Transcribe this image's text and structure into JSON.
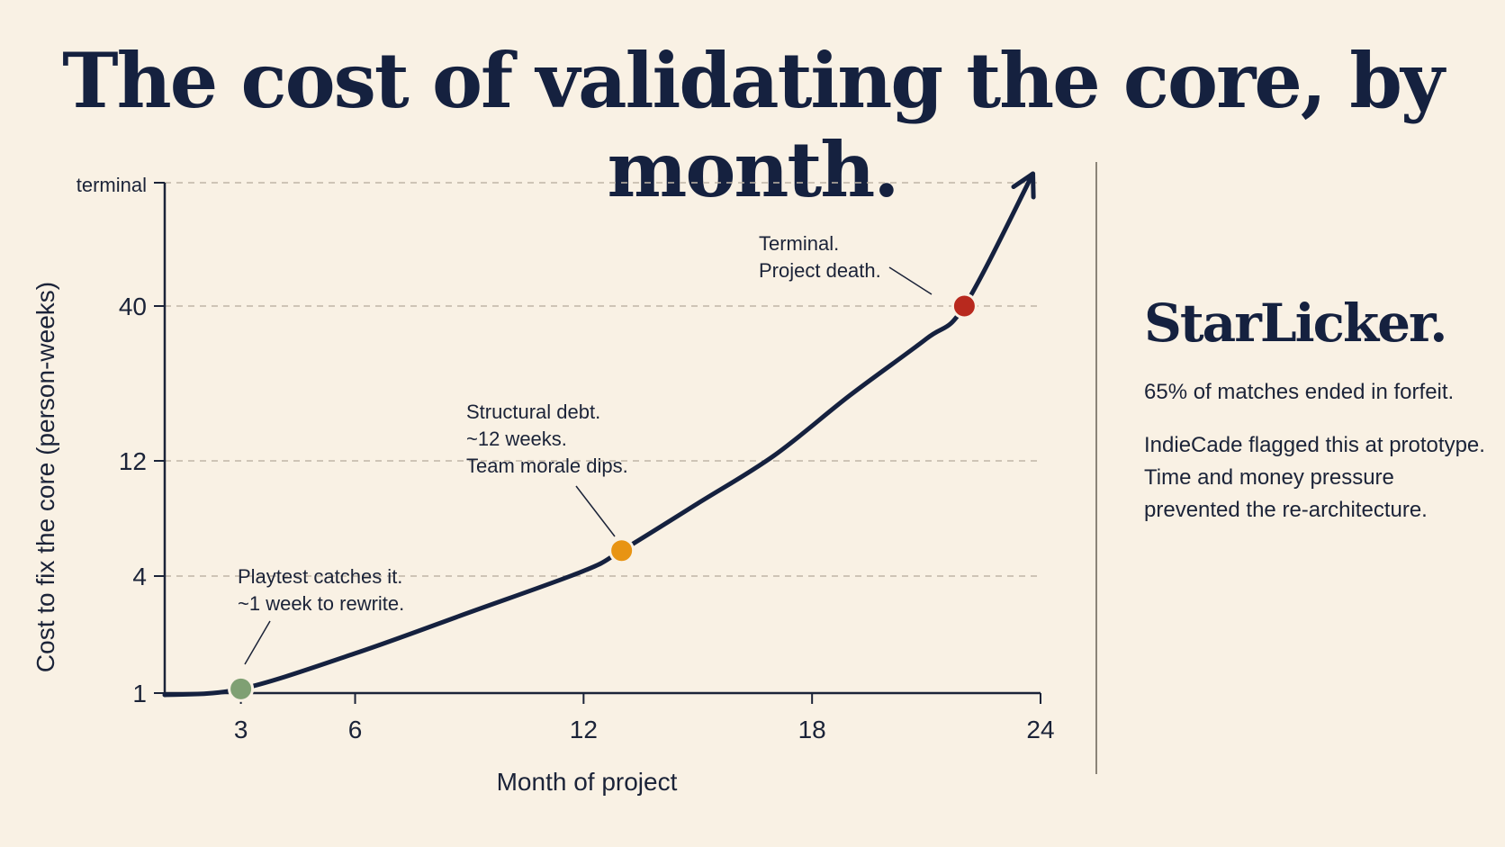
{
  "title": "The cost of validating the core, by month.",
  "sidebar": {
    "title": "StarLicker.",
    "stat": "65% of matches ended in forfeit.",
    "note": "IndieCade flagged this at prototype. Time and money pressure prevented the re-architecture."
  },
  "colors": {
    "background": "#f9f1e4",
    "curve": "#15213f",
    "early": "#7fa073",
    "mid": "#e89413",
    "late": "#b8291e"
  },
  "chart_data": {
    "type": "line",
    "title": "The cost of validating the core, by month.",
    "xlabel": "Month of project",
    "ylabel": "Cost to fix the core (person-weeks)",
    "x_ticks": [
      3,
      6,
      12,
      18,
      24
    ],
    "y_ticks": [
      {
        "value": 1,
        "label": "1"
      },
      {
        "value": 4,
        "label": "4"
      },
      {
        "value": 12,
        "label": "12"
      },
      {
        "value": 40,
        "label": "40"
      },
      {
        "value": 100,
        "label": "terminal"
      }
    ],
    "xlim": [
      1,
      24
    ],
    "ylim": [
      1,
      100
    ],
    "grid": true,
    "series": [
      {
        "x": [
          1,
          3,
          6,
          9,
          12,
          13,
          15,
          17,
          19,
          21,
          22,
          23.8
        ],
        "y": [
          0.95,
          1.05,
          1.6,
          2.6,
          4.2,
          5.1,
          8,
          12.5,
          20,
          31,
          40,
          120
        ]
      }
    ],
    "points": [
      {
        "x": 3,
        "y": 1.05,
        "color": "#7fa073",
        "label": [
          "Playtest catches it.",
          "~1 week to rewrite."
        ]
      },
      {
        "x": 13,
        "y": 5.1,
        "color": "#e89413",
        "label": [
          "Structural debt.",
          "~12 weeks.",
          "Team morale dips."
        ]
      },
      {
        "x": 22,
        "y": 40,
        "color": "#b8291e",
        "label": [
          "Terminal.",
          "Project death."
        ]
      }
    ]
  }
}
